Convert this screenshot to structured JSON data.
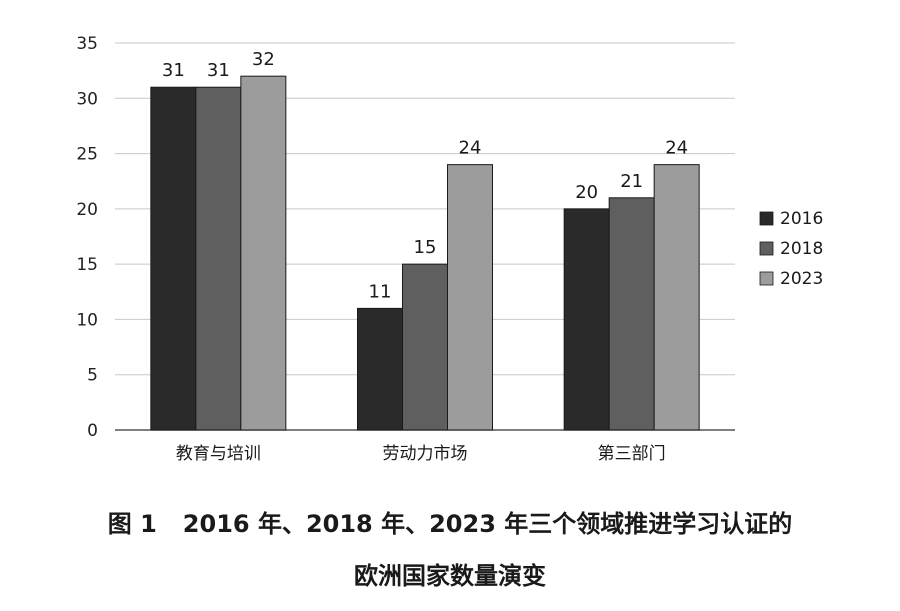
{
  "chart_data": {
    "type": "bar",
    "categories": [
      "教育与培训",
      "劳动力市场",
      "第三部门"
    ],
    "series": [
      {
        "name": "2016",
        "values": [
          31,
          11,
          20
        ],
        "color": "#2a2a2a"
      },
      {
        "name": "2018",
        "values": [
          31,
          15,
          21
        ],
        "color": "#5f5f5f"
      },
      {
        "name": "2023",
        "values": [
          32,
          24,
          24
        ],
        "color": "#9c9c9c"
      }
    ],
    "ylim": [
      0,
      35
    ],
    "yticks": [
      0,
      5,
      10,
      15,
      20,
      25,
      30,
      35
    ],
    "grid": true,
    "legend": "right"
  },
  "caption": {
    "figure_number": "图 1",
    "line1": "2016 年、2018 年、2023 年三个领域推进学习认证的",
    "line2": "欧洲国家数量演变"
  }
}
